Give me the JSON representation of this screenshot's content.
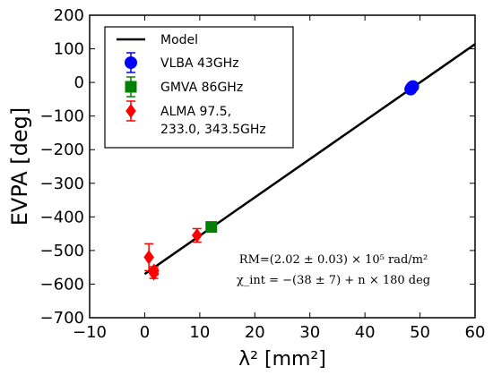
{
  "chart_data": {
    "type": "scatter",
    "xlabel": "λ² [mm²]",
    "ylabel": "EVPA [deg]",
    "xlim": [
      -10,
      60
    ],
    "ylim": [
      -700,
      200
    ],
    "xticks": [
      -10,
      0,
      10,
      20,
      30,
      40,
      50,
      60
    ],
    "yticks": [
      -700,
      -600,
      -500,
      -400,
      -300,
      -200,
      -100,
      0,
      100,
      200
    ],
    "grid": false,
    "legend_position": "top-left",
    "model": {
      "name": "Model",
      "color": "#000000",
      "points": [
        [
          0,
          -570
        ],
        [
          60,
          114
        ]
      ]
    },
    "series": [
      {
        "name": "VLBA 43GHz",
        "marker": "circle",
        "color": "#0000ff",
        "points": [
          {
            "x": 48.3,
            "y": -20,
            "err": 6
          },
          {
            "x": 48.5,
            "y": -15,
            "err": 6
          },
          {
            "x": 48.7,
            "y": -12,
            "err": 6
          }
        ]
      },
      {
        "name": "GMVA 86GHz",
        "marker": "square",
        "color": "#008000",
        "points": [
          {
            "x": 12.1,
            "y": -430,
            "err": 8
          }
        ]
      },
      {
        "name": "ALMA 97.5, 233.0, 343.5GHz",
        "name_lines": [
          "ALMA 97.5,",
          "233.0, 343.5GHz"
        ],
        "marker": "diamond",
        "color": "#ff0000",
        "points": [
          {
            "x": 9.5,
            "y": -455,
            "err": 20
          },
          {
            "x": 0.76,
            "y": -520,
            "err": 40
          },
          {
            "x": 1.65,
            "y": -568,
            "err": 15
          },
          {
            "x": 1.7,
            "y": -560,
            "err": 12
          }
        ]
      }
    ],
    "annotations": [
      "RM=(2.02 ± 0.03) × 10⁵ rad/m²",
      "χ_int = −(38 ± 7) + n × 180 deg"
    ]
  }
}
